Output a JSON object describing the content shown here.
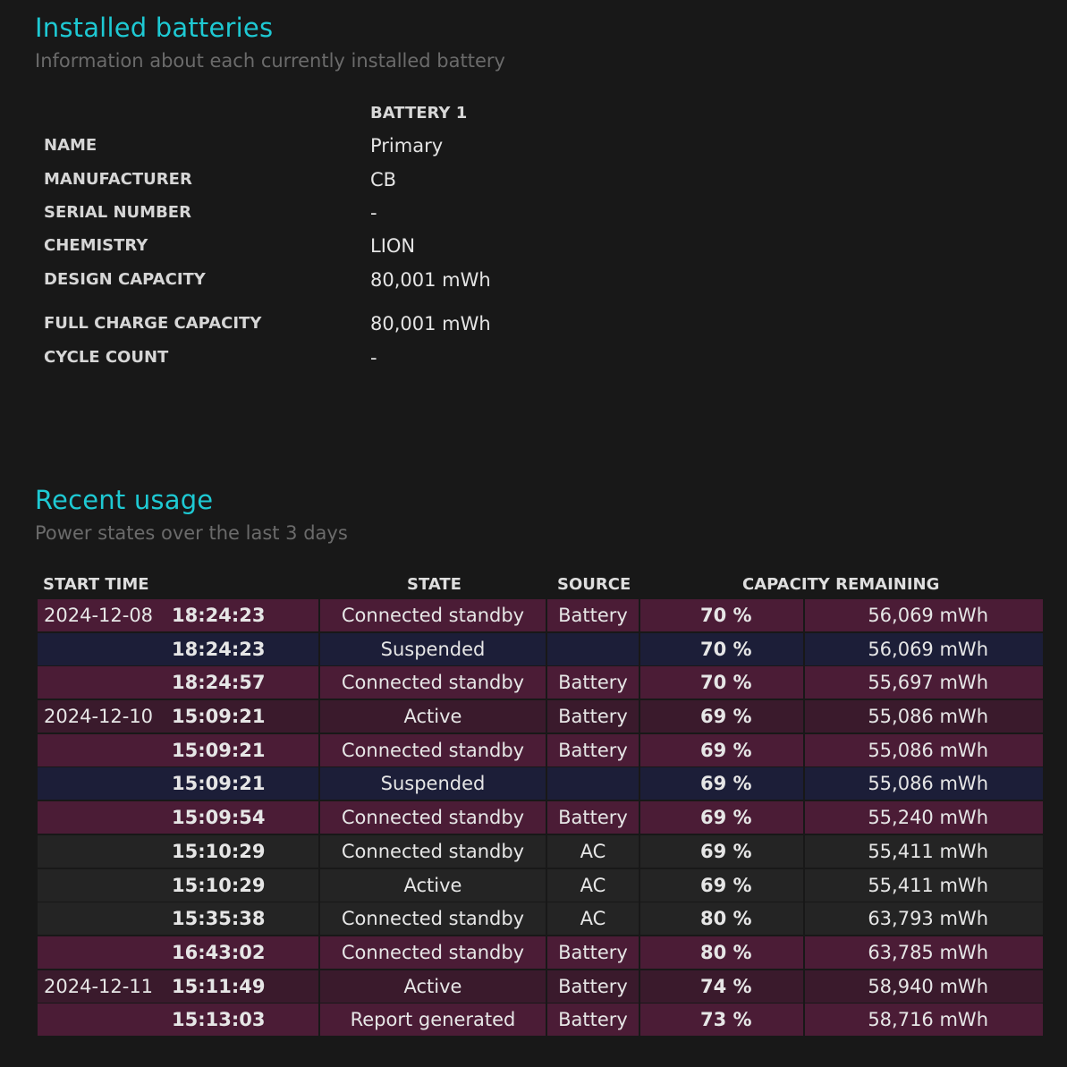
{
  "installed": {
    "title": "Installed batteries",
    "subtitle": "Information about each currently installed battery",
    "battery_header": "BATTERY 1",
    "rows": [
      {
        "label": "NAME",
        "value": "Primary"
      },
      {
        "label": "MANUFACTURER",
        "value": "CB"
      },
      {
        "label": "SERIAL NUMBER",
        "value": "-"
      },
      {
        "label": "CHEMISTRY",
        "value": "LION"
      },
      {
        "label": "DESIGN CAPACITY",
        "value": "80,001 mWh"
      },
      {
        "label": "FULL CHARGE CAPACITY",
        "value": "80,001 mWh"
      },
      {
        "label": "CYCLE COUNT",
        "value": "-"
      }
    ]
  },
  "recent": {
    "title": "Recent usage",
    "subtitle": "Power states over the last 3 days",
    "columns": {
      "start_time": "START TIME",
      "state": "STATE",
      "source": "SOURCE",
      "capacity": "CAPACITY REMAINING"
    },
    "rows": [
      {
        "date": "2024-12-08",
        "time": "18:24:23",
        "state": "Connected standby",
        "source": "Battery",
        "pct": "70 %",
        "mwh": "56,069 mWh",
        "kind": "battery"
      },
      {
        "date": "",
        "time": "18:24:23",
        "state": "Suspended",
        "source": "",
        "pct": "70 %",
        "mwh": "56,069 mWh",
        "kind": "suspend"
      },
      {
        "date": "",
        "time": "18:24:57",
        "state": "Connected standby",
        "source": "Battery",
        "pct": "70 %",
        "mwh": "55,697 mWh",
        "kind": "battery"
      },
      {
        "date": "2024-12-10",
        "time": "15:09:21",
        "state": "Active",
        "source": "Battery",
        "pct": "69 %",
        "mwh": "55,086 mWh",
        "kind": "active-bat"
      },
      {
        "date": "",
        "time": "15:09:21",
        "state": "Connected standby",
        "source": "Battery",
        "pct": "69 %",
        "mwh": "55,086 mWh",
        "kind": "battery"
      },
      {
        "date": "",
        "time": "15:09:21",
        "state": "Suspended",
        "source": "",
        "pct": "69 %",
        "mwh": "55,086 mWh",
        "kind": "suspend"
      },
      {
        "date": "",
        "time": "15:09:54",
        "state": "Connected standby",
        "source": "Battery",
        "pct": "69 %",
        "mwh": "55,240 mWh",
        "kind": "battery"
      },
      {
        "date": "",
        "time": "15:10:29",
        "state": "Connected standby",
        "source": "AC",
        "pct": "69 %",
        "mwh": "55,411 mWh",
        "kind": "ac"
      },
      {
        "date": "",
        "time": "15:10:29",
        "state": "Active",
        "source": "AC",
        "pct": "69 %",
        "mwh": "55,411 mWh",
        "kind": "ac"
      },
      {
        "date": "",
        "time": "15:35:38",
        "state": "Connected standby",
        "source": "AC",
        "pct": "80 %",
        "mwh": "63,793 mWh",
        "kind": "ac"
      },
      {
        "date": "",
        "time": "16:43:02",
        "state": "Connected standby",
        "source": "Battery",
        "pct": "80 %",
        "mwh": "63,785 mWh",
        "kind": "battery"
      },
      {
        "date": "2024-12-11",
        "time": "15:11:49",
        "state": "Active",
        "source": "Battery",
        "pct": "74 %",
        "mwh": "58,940 mWh",
        "kind": "active-bat"
      },
      {
        "date": "",
        "time": "15:13:03",
        "state": "Report generated",
        "source": "Battery",
        "pct": "73 %",
        "mwh": "58,716 mWh",
        "kind": "battery"
      }
    ]
  },
  "colors": {
    "accent": "#1ec9d3",
    "battery_row": "#4b1c36",
    "active_battery_row": "#3a1a2c",
    "suspended_row": "#1c1e38",
    "ac_row": "#242424",
    "background": "#181818"
  }
}
